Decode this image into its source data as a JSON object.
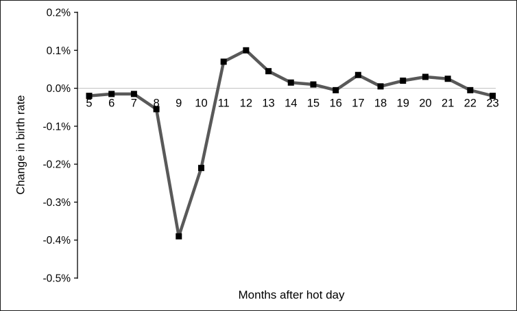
{
  "chart_data": {
    "type": "line",
    "title": "",
    "xlabel": "Months after hot day",
    "ylabel": "Change in birth rate",
    "x": [
      5,
      6,
      7,
      8,
      9,
      10,
      11,
      12,
      13,
      14,
      15,
      16,
      17,
      18,
      19,
      20,
      21,
      22,
      23
    ],
    "values": [
      -0.02,
      -0.015,
      -0.015,
      -0.055,
      -0.39,
      -0.21,
      0.07,
      0.1,
      0.045,
      0.015,
      0.01,
      -0.005,
      0.035,
      0.005,
      0.02,
      0.03,
      0.025,
      -0.005,
      -0.02
    ],
    "value_unit": "%",
    "ylim": [
      -0.5,
      0.2
    ],
    "ytick_step": 0.1,
    "ytick_labels": [
      "0.2%",
      "0.1%",
      "0.0%",
      "-0.1%",
      "-0.2%",
      "-0.3%",
      "-0.4%",
      "-0.5%"
    ],
    "grid": "zero-line-only",
    "legend": "none",
    "line_color": "#595959",
    "marker_color": "#000000",
    "marker_shape": "square",
    "axis_color": "#000000",
    "zero_line_color": "#bfbfbf"
  }
}
